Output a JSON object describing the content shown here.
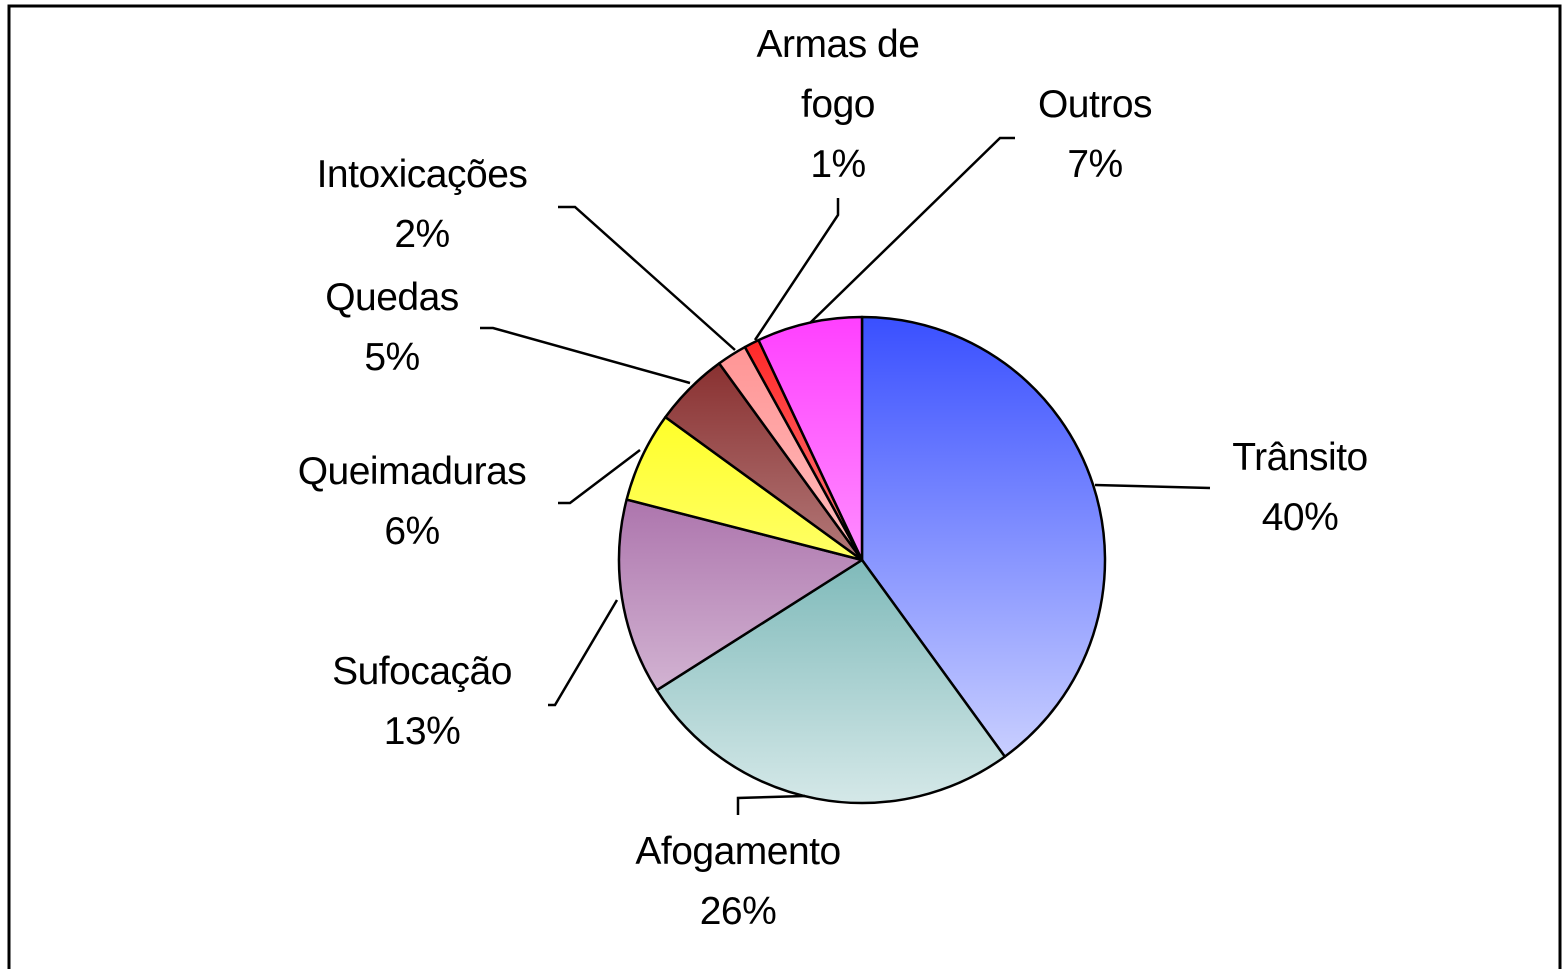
{
  "chart_data": {
    "type": "pie",
    "categories": [
      "Trânsito",
      "Afogamento",
      "Sufocação",
      "Queimaduras",
      "Quedas",
      "Intoxicações",
      "Armas de fogo",
      "Outros"
    ],
    "values": [
      40,
      26,
      13,
      6,
      5,
      2,
      1,
      7
    ],
    "value_labels": [
      "40%",
      "26%",
      "13%",
      "6%",
      "5%",
      "2%",
      "1%",
      "7%"
    ],
    "colors": [
      "#3a50ff",
      "#2a8c8c",
      "#8a3a8a",
      "#ffff00",
      "#802020",
      "#ff9090",
      "#ff2020",
      "#ff40ff"
    ]
  }
}
